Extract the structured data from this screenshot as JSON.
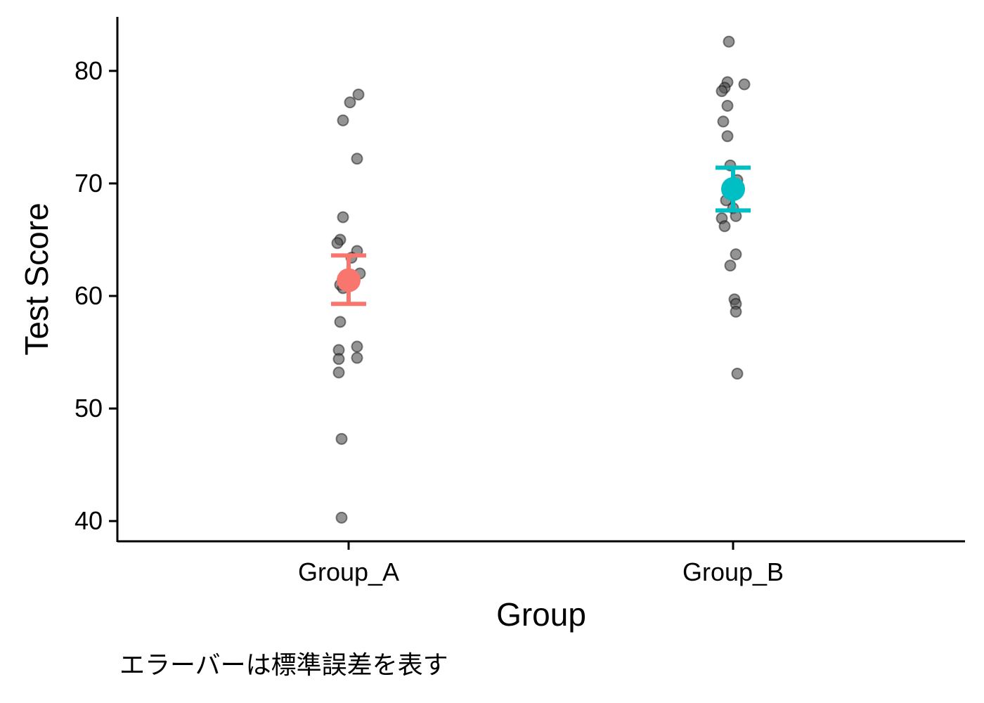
{
  "chart_data": {
    "type": "scatter",
    "xlabel": "Group",
    "ylabel": "Test Score",
    "caption": "エラーバーは標準誤差を表す",
    "categories": [
      "Group_A",
      "Group_B"
    ],
    "ylim": [
      38.2,
      84.8
    ],
    "yticks": [
      40,
      50,
      60,
      70,
      80
    ],
    "grid": false,
    "legend": "none",
    "point_color": "#4d4d4d",
    "groups": [
      {
        "name": "Group_A",
        "color": "#F8766D",
        "mean": 61.4,
        "se_low": 59.3,
        "se_high": 63.6,
        "points": [
          77.9,
          77.2,
          75.6,
          72.2,
          67.0,
          65.0,
          64.7,
          64.0,
          63.4,
          62.0,
          61.3,
          61.0,
          60.7,
          57.7,
          55.5,
          55.2,
          54.5,
          54.4,
          53.2,
          47.3,
          40.3
        ]
      },
      {
        "name": "Group_B",
        "color": "#00BFC4",
        "mean": 69.5,
        "se_low": 67.6,
        "se_high": 71.4,
        "points": [
          82.6,
          79.0,
          78.8,
          78.5,
          78.2,
          76.9,
          75.5,
          74.2,
          71.6,
          70.3,
          68.5,
          67.8,
          67.1,
          66.9,
          66.2,
          63.7,
          62.7,
          59.7,
          59.3,
          58.6,
          53.1
        ]
      }
    ]
  }
}
